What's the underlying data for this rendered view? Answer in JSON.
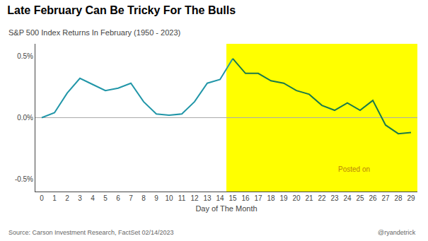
{
  "chart_data": {
    "type": "line",
    "title": "Late February Can Be Tricky For The Bulls",
    "subtitle": "S&P 500 Index Returns In February (1950 - 2023)",
    "xlabel": "Day of The Month",
    "source": "Source: Carson Investment Research, FactSet 02/14/2023",
    "credit": "@ryandetrick",
    "x": [
      0,
      1,
      2,
      3,
      4,
      5,
      6,
      7,
      8,
      9,
      10,
      11,
      12,
      13,
      14,
      15,
      16,
      17,
      18,
      19,
      20,
      21,
      22,
      23,
      24,
      25,
      26,
      27,
      28,
      29
    ],
    "series": [
      {
        "color": "#2196a8",
        "values": [
          0.0,
          0.0004,
          0.002,
          0.0032,
          0.0027,
          0.0022,
          0.0024,
          0.0028,
          0.0013,
          0.0003,
          0.0002,
          0.0003,
          0.0013,
          0.0028,
          0.0031,
          0.0048,
          null,
          null,
          null,
          null,
          null,
          null,
          null,
          null,
          null,
          null,
          null,
          null,
          null,
          null
        ]
      },
      {
        "color": "#1a7a4a",
        "values": [
          null,
          null,
          null,
          null,
          null,
          null,
          null,
          null,
          null,
          null,
          null,
          null,
          null,
          null,
          null,
          0.0048,
          0.0036,
          0.0036,
          0.003,
          0.0028,
          0.0022,
          0.0019,
          0.001,
          0.0006,
          0.0012,
          0.0006,
          0.0014,
          -0.0006,
          -0.0013,
          -0.0012
        ]
      }
    ],
    "shaded": {
      "x": [
        14.5,
        29.5
      ],
      "color": "#ffff00"
    },
    "zero_line": {
      "y": 0,
      "color": "#aaaaaa"
    },
    "annotations": [
      {
        "text": "Posted on",
        "x": 24.5,
        "y": -0.0042,
        "color": "#b8860b"
      }
    ],
    "xlim": [
      -0.5,
      29.5
    ],
    "xticks": [
      0,
      1,
      2,
      3,
      4,
      5,
      6,
      7,
      8,
      9,
      10,
      11,
      12,
      13,
      14,
      15,
      16,
      17,
      18,
      19,
      20,
      21,
      22,
      23,
      24,
      25,
      26,
      27,
      28,
      29
    ],
    "ylim": [
      -0.006,
      0.006
    ],
    "yticks": [
      {
        "value": -0.005,
        "label": "-0.5%"
      },
      {
        "value": 0.0,
        "label": "0.0%"
      },
      {
        "value": 0.005,
        "label": "0.5%"
      }
    ],
    "grid": false
  }
}
